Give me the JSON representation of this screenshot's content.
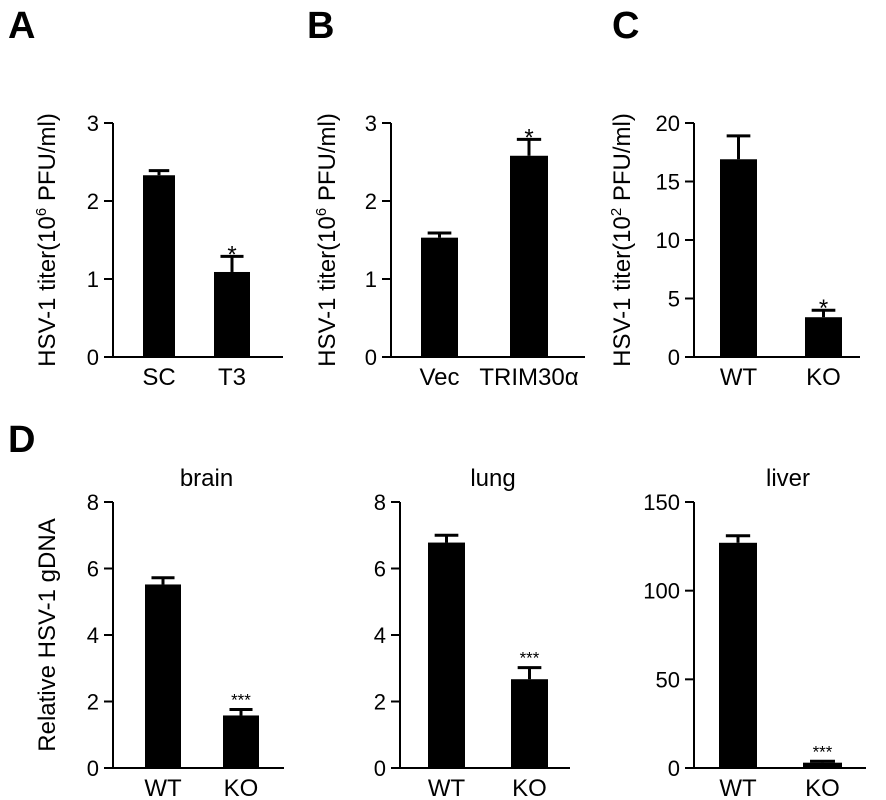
{
  "colors": {
    "bar": "#000000",
    "axis": "#000000"
  },
  "chart_data": [
    {
      "panel": "A",
      "type": "bar",
      "title": "",
      "ylabel": {
        "pre": "HSV-1 titer(10",
        "sup": "6",
        "post": " PFU/ml)"
      },
      "categories": [
        "SC",
        "T3"
      ],
      "values": [
        2.33,
        1.09
      ],
      "errors": [
        0.06,
        0.2
      ],
      "significance": [
        "",
        "*"
      ],
      "ylim": [
        0,
        3
      ],
      "yticks": [
        "0",
        "1",
        "2",
        "3"
      ],
      "ytick_values": [
        0,
        1,
        2,
        3
      ]
    },
    {
      "panel": "B",
      "type": "bar",
      "title": "",
      "ylabel": {
        "pre": "HSV-1 titer(10",
        "sup": "6",
        "post": " PFU/ml)"
      },
      "categories": [
        "Vec",
        "TRIM30α"
      ],
      "values": [
        1.53,
        2.58
      ],
      "errors": [
        0.06,
        0.21
      ],
      "significance": [
        "",
        "*"
      ],
      "ylim": [
        0,
        3
      ],
      "yticks": [
        "0",
        "1",
        "2",
        "3"
      ],
      "ytick_values": [
        0,
        1,
        2,
        3
      ]
    },
    {
      "panel": "C",
      "type": "bar",
      "title": "",
      "ylabel": {
        "pre": "HSV-1 titer(10",
        "sup": "2",
        "post": " PFU/ml)"
      },
      "categories": [
        "WT",
        "KO"
      ],
      "values": [
        16.9,
        3.4
      ],
      "errors": [
        2.0,
        0.6
      ],
      "significance": [
        "",
        "*"
      ],
      "ylim": [
        0,
        20
      ],
      "yticks": [
        "0",
        "5",
        "10",
        "15",
        "20"
      ],
      "ytick_values": [
        0,
        5,
        10,
        15,
        20
      ]
    },
    {
      "panel": "D",
      "type": "bar",
      "title": "brain",
      "ylabel": {
        "pre": "Relative HSV-1 gDNA",
        "sup": "",
        "post": ""
      },
      "categories": [
        "WT",
        "KO"
      ],
      "values": [
        5.52,
        1.58
      ],
      "errors": [
        0.2,
        0.18
      ],
      "significance": [
        "",
        "***"
      ],
      "ylim": [
        0,
        8
      ],
      "yticks": [
        "0",
        "2",
        "4",
        "6",
        "8"
      ],
      "ytick_values": [
        0,
        2,
        4,
        6,
        8
      ]
    },
    {
      "panel": "",
      "type": "bar",
      "title": "lung",
      "ylabel": {
        "pre": "",
        "sup": "",
        "post": ""
      },
      "categories": [
        "WT",
        "KO"
      ],
      "values": [
        6.78,
        2.67
      ],
      "errors": [
        0.22,
        0.35
      ],
      "significance": [
        "",
        "***"
      ],
      "ylim": [
        0,
        8
      ],
      "yticks": [
        "0",
        "2",
        "4",
        "6",
        "8"
      ],
      "ytick_values": [
        0,
        2,
        4,
        6,
        8
      ]
    },
    {
      "panel": "",
      "type": "bar",
      "title": "liver",
      "ylabel": {
        "pre": "",
        "sup": "",
        "post": ""
      },
      "categories": [
        "WT",
        "KO"
      ],
      "values": [
        127,
        3
      ],
      "errors": [
        4,
        0.8
      ],
      "significance": [
        "",
        "***"
      ],
      "ylim": [
        0,
        150
      ],
      "yticks": [
        "0",
        "50",
        "100",
        "150"
      ],
      "ytick_values": [
        0,
        50,
        100,
        150
      ]
    }
  ]
}
